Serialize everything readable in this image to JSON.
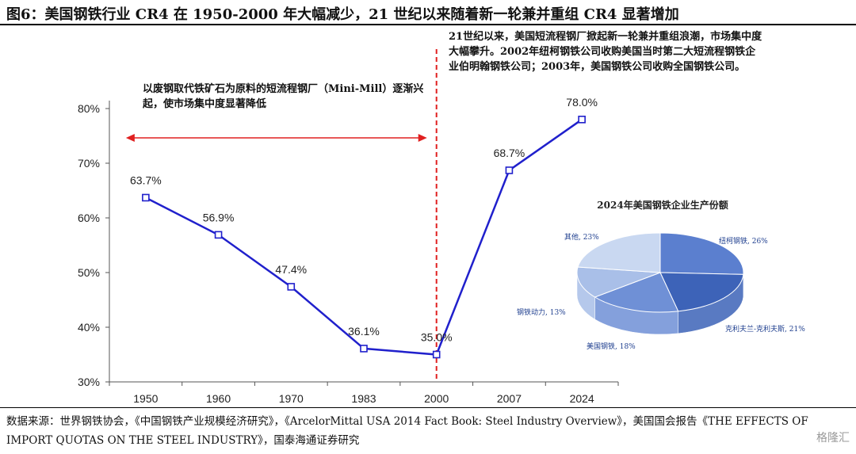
{
  "title": "图6：美国钢铁行业 CR4 在 1950-2000 年大幅减少，21 世纪以来随着新一轮兼并重组 CR4 显著增加",
  "annotation_left": "以废钢取代铁矿石为原料的短流程钢厂（Mini-Mill）逐渐兴起，使市场集中度显著降低",
  "annotation_right": "21世纪以来，美国短流程钢厂掀起新一轮兼并重组浪潮，市场集中度大幅攀升。2002年纽柯钢铁公司收购美国当时第二大短流程钢铁企业伯明翰钢铁公司；2003年，美国钢铁公司收购全国钢铁公司。",
  "source": "数据来源：世界钢铁协会，《中国钢铁产业规模经济研究》，《ArcelorMittal USA 2014 Fact Book: Steel Industry Overview》，美国国会报告《THE EFFECTS OF IMPORT QUOTAS ON THE STEEL INDUSTRY》，国泰海通证券研究",
  "watermark": "格隆汇",
  "colors": {
    "line": "#2020cc",
    "divider": "#e02020",
    "arrow": "#e02020",
    "pie_main": "#4a72c4"
  },
  "chart_data": [
    {
      "type": "line",
      "categories": [
        "1950",
        "1960",
        "1970",
        "1983",
        "2000",
        "2007",
        "2024"
      ],
      "values": [
        63.7,
        56.9,
        47.4,
        36.1,
        35.0,
        68.7,
        78.0
      ],
      "value_labels": [
        "63.7%",
        "56.9%",
        "47.4%",
        "36.1%",
        "35.0%",
        "68.7%",
        "78.0%"
      ],
      "yticks": [
        "30%",
        "40%",
        "50%",
        "60%",
        "70%",
        "80%"
      ],
      "ylim": [
        30,
        80
      ],
      "divider_at": "2000",
      "arrow_span": [
        "1950",
        "2000"
      ]
    },
    {
      "type": "pie",
      "title": "2024年美国钢铁企业生产份额",
      "slices": [
        {
          "label": "纽柯钢铁, 26%",
          "value": 26,
          "color": "#5b7fcf"
        },
        {
          "label": "克利夫兰-克利夫斯, 21%",
          "value": 21,
          "color": "#3d63b8"
        },
        {
          "label": "美国钢铁, 18%",
          "value": 18,
          "color": "#6f90d6"
        },
        {
          "label": "钢铁动力, 13%",
          "value": 13,
          "color": "#a9bfe8"
        },
        {
          "label": "其他, 23%",
          "value": 23,
          "color": "#c9d8f1"
        }
      ]
    }
  ]
}
